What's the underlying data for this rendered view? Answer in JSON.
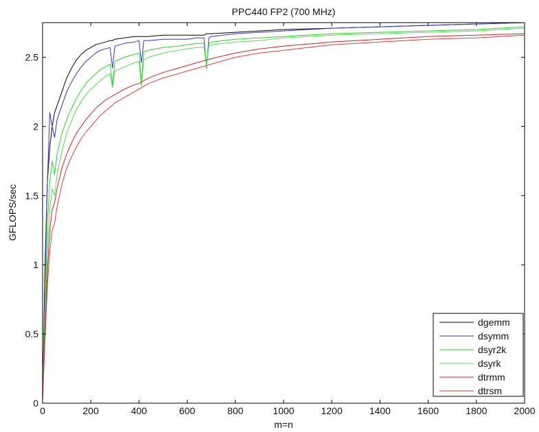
{
  "chart_data": {
    "type": "line",
    "title": "PPC440 FP2 (700 MHz)",
    "xlabel": "m=n",
    "ylabel": "GFLOPS/sec",
    "xlim": [
      0,
      2000
    ],
    "ylim": [
      0,
      2.75
    ],
    "xticks": [
      0,
      200,
      400,
      600,
      800,
      1000,
      1200,
      1400,
      1600,
      1800,
      2000
    ],
    "yticks": [
      0,
      0.5,
      1,
      1.5,
      2,
      2.5
    ],
    "ytick_labels": [
      "0",
      "0.5",
      "1",
      "1.5",
      "2",
      "2.5"
    ],
    "grid": false,
    "legend_position": "bottom-right",
    "series": [
      {
        "name": "dgemm",
        "color": "#000000",
        "x": [
          0,
          10,
          20,
          30,
          40,
          50,
          60,
          80,
          100,
          120,
          140,
          160,
          180,
          200,
          220,
          240,
          260,
          280,
          290,
          300,
          340,
          380,
          400,
          410,
          420,
          440,
          500,
          560,
          600,
          640,
          660,
          670,
          680,
          690,
          700,
          800,
          900,
          1000,
          1200,
          1400,
          1600,
          1800,
          2000
        ],
        "y": [
          0.02,
          1.0,
          1.6,
          1.85,
          2.0,
          2.1,
          2.15,
          2.25,
          2.35,
          2.42,
          2.48,
          2.52,
          2.55,
          2.57,
          2.59,
          2.6,
          2.61,
          2.62,
          2.62,
          2.63,
          2.64,
          2.65,
          2.65,
          2.65,
          2.65,
          2.65,
          2.66,
          2.66,
          2.66,
          2.66,
          2.66,
          2.66,
          2.67,
          2.67,
          2.67,
          2.68,
          2.69,
          2.7,
          2.71,
          2.72,
          2.73,
          2.74,
          2.75
        ]
      },
      {
        "name": "dsymm",
        "color": "#3333cc",
        "x": [
          0,
          10,
          20,
          30,
          40,
          50,
          60,
          80,
          100,
          120,
          140,
          160,
          180,
          200,
          220,
          240,
          260,
          280,
          290,
          300,
          340,
          380,
          400,
          410,
          420,
          440,
          500,
          560,
          600,
          640,
          660,
          670,
          680,
          690,
          700,
          800,
          900,
          1000,
          1200,
          1400,
          1600,
          1800,
          2000
        ],
        "y": [
          0.02,
          0.9,
          1.6,
          2.1,
          2.0,
          1.92,
          2.05,
          2.15,
          2.25,
          2.32,
          2.38,
          2.43,
          2.47,
          2.5,
          2.53,
          2.55,
          2.56,
          2.57,
          2.42,
          2.58,
          2.6,
          2.61,
          2.62,
          2.46,
          2.62,
          2.62,
          2.63,
          2.63,
          2.63,
          2.64,
          2.64,
          2.64,
          2.42,
          2.64,
          2.65,
          2.67,
          2.68,
          2.69,
          2.71,
          2.72,
          2.73,
          2.74,
          2.75
        ]
      },
      {
        "name": "dsyr2k",
        "color": "#33cc33",
        "x": [
          0,
          10,
          20,
          30,
          40,
          50,
          60,
          80,
          100,
          120,
          140,
          160,
          180,
          200,
          220,
          240,
          260,
          280,
          290,
          300,
          340,
          380,
          400,
          410,
          420,
          440,
          500,
          560,
          600,
          640,
          660,
          670,
          680,
          690,
          700,
          800,
          900,
          1000,
          1200,
          1400,
          1600,
          1800,
          2000
        ],
        "y": [
          0.02,
          0.7,
          1.3,
          1.6,
          1.75,
          1.65,
          1.8,
          1.95,
          2.05,
          2.13,
          2.2,
          2.26,
          2.31,
          2.35,
          2.38,
          2.41,
          2.43,
          2.45,
          2.3,
          2.47,
          2.5,
          2.52,
          2.53,
          2.32,
          2.54,
          2.55,
          2.57,
          2.58,
          2.59,
          2.6,
          2.6,
          2.6,
          2.45,
          2.6,
          2.61,
          2.63,
          2.64,
          2.65,
          2.67,
          2.68,
          2.69,
          2.7,
          2.72
        ]
      },
      {
        "name": "dsyrk",
        "color": "#55dd55",
        "x": [
          0,
          10,
          20,
          30,
          40,
          50,
          60,
          80,
          100,
          120,
          140,
          160,
          180,
          200,
          220,
          240,
          260,
          280,
          290,
          300,
          340,
          380,
          400,
          410,
          420,
          440,
          500,
          560,
          600,
          640,
          660,
          670,
          680,
          690,
          700,
          800,
          900,
          1000,
          1200,
          1400,
          1600,
          1800,
          2000
        ],
        "y": [
          0.02,
          0.6,
          1.1,
          1.4,
          1.55,
          1.5,
          1.65,
          1.82,
          1.95,
          2.04,
          2.12,
          2.18,
          2.23,
          2.27,
          2.3,
          2.33,
          2.36,
          2.38,
          2.28,
          2.4,
          2.43,
          2.46,
          2.47,
          2.29,
          2.48,
          2.5,
          2.53,
          2.55,
          2.56,
          2.57,
          2.57,
          2.57,
          2.43,
          2.58,
          2.59,
          2.61,
          2.62,
          2.64,
          2.66,
          2.67,
          2.68,
          2.69,
          2.71
        ]
      },
      {
        "name": "dtrmm",
        "color": "#cc2222",
        "x": [
          0,
          10,
          20,
          30,
          40,
          50,
          60,
          80,
          100,
          120,
          140,
          160,
          180,
          200,
          220,
          240,
          260,
          280,
          300,
          340,
          380,
          400,
          420,
          440,
          500,
          560,
          600,
          640,
          680,
          700,
          800,
          900,
          1000,
          1200,
          1400,
          1600,
          1800,
          2000
        ],
        "y": [
          0.02,
          0.5,
          0.95,
          1.25,
          1.4,
          1.45,
          1.55,
          1.7,
          1.8,
          1.88,
          1.95,
          2.0,
          2.05,
          2.09,
          2.13,
          2.16,
          2.19,
          2.21,
          2.23,
          2.27,
          2.3,
          2.31,
          2.33,
          2.35,
          2.39,
          2.42,
          2.44,
          2.46,
          2.48,
          2.49,
          2.53,
          2.56,
          2.58,
          2.61,
          2.63,
          2.65,
          2.66,
          2.67
        ]
      },
      {
        "name": "dtrsm",
        "color": "#e03a3a",
        "x": [
          0,
          10,
          20,
          30,
          40,
          50,
          60,
          80,
          100,
          120,
          140,
          160,
          180,
          200,
          220,
          240,
          260,
          280,
          300,
          340,
          380,
          400,
          420,
          440,
          500,
          560,
          600,
          640,
          680,
          700,
          800,
          900,
          1000,
          1200,
          1400,
          1600,
          1800,
          2000
        ],
        "y": [
          0.02,
          0.45,
          0.85,
          1.1,
          1.25,
          1.3,
          1.42,
          1.58,
          1.7,
          1.78,
          1.85,
          1.91,
          1.96,
          2.0,
          2.04,
          2.08,
          2.11,
          2.14,
          2.17,
          2.21,
          2.25,
          2.27,
          2.29,
          2.31,
          2.35,
          2.38,
          2.4,
          2.42,
          2.44,
          2.45,
          2.5,
          2.53,
          2.55,
          2.59,
          2.61,
          2.63,
          2.64,
          2.66
        ]
      }
    ]
  }
}
